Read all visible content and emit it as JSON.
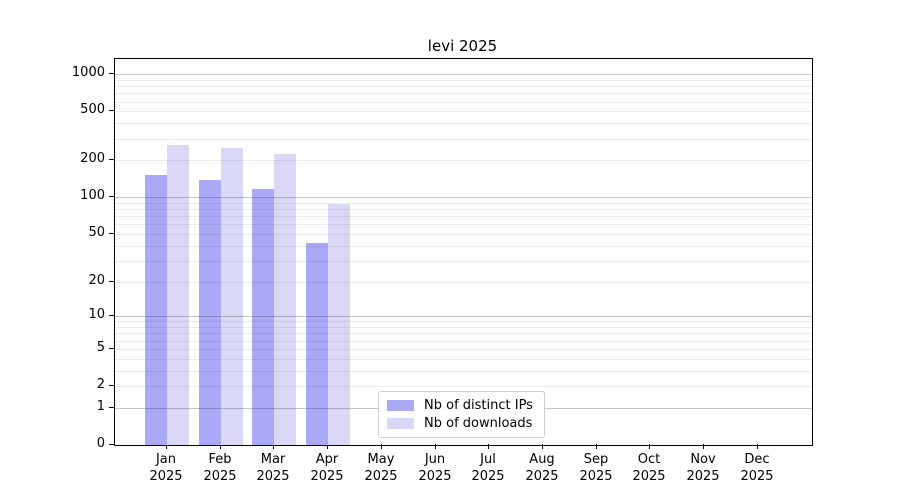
{
  "title": "levi 2025",
  "chart_data": {
    "type": "bar",
    "title": "levi 2025",
    "yscale": "symlog-log1p",
    "grid": "major+minor horizontal",
    "legend_position": "lower center",
    "categories": [
      "Jan 2025",
      "Feb 2025",
      "Mar 2025",
      "Apr 2025",
      "May 2025",
      "Jun 2025",
      "Jul 2025",
      "Aug 2025",
      "Sep 2025",
      "Oct 2025",
      "Nov 2025",
      "Dec 2025"
    ],
    "x_ticks": {
      "months": [
        "Jan",
        "Feb",
        "Mar",
        "Apr",
        "May",
        "Jun",
        "Jul",
        "Aug",
        "Sep",
        "Oct",
        "Nov",
        "Dec"
      ],
      "year": "2025"
    },
    "series": [
      {
        "name": "Nb of distinct IPs",
        "color": "#a9a9f7",
        "values": [
          151,
          139,
          118,
          42,
          null,
          null,
          null,
          null,
          null,
          null,
          null,
          null
        ]
      },
      {
        "name": "Nb of downloads",
        "color": "#d9d9f7",
        "values": [
          269,
          252,
          224,
          88,
          null,
          null,
          null,
          null,
          null,
          null,
          null,
          null
        ]
      }
    ],
    "y_ticks": [
      0,
      1,
      2,
      5,
      10,
      20,
      50,
      100,
      200,
      500,
      1000
    ],
    "ylim": [
      0,
      1330
    ]
  },
  "colors": {
    "background": "#ffffff",
    "spine": "#000000",
    "major_grid": "rgba(0,0,0,0.22)",
    "minor_grid": "rgba(0,0,0,0.08)",
    "legend_border": "#cccccc",
    "text": "#000000"
  }
}
